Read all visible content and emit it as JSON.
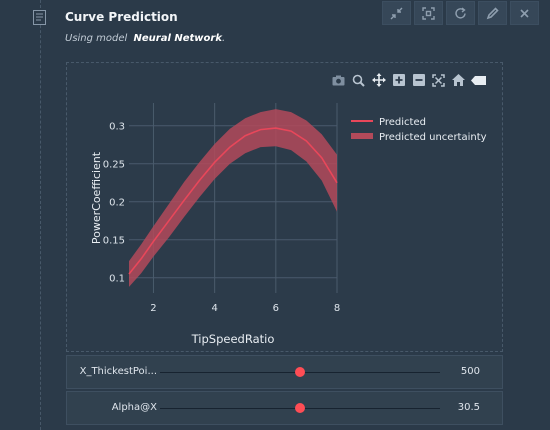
{
  "header": {
    "title": "Curve Prediction",
    "subtitle_prefix": "Using model",
    "model_name": "Neural Network",
    "subtitle_suffix": "."
  },
  "toolbar": {
    "icons": [
      "collapse-icon",
      "expand-icon",
      "refresh-icon",
      "edit-icon",
      "close-icon"
    ]
  },
  "modebar": {
    "icons": [
      "camera-icon",
      "zoom-icon",
      "pan-icon",
      "zoom-in-icon",
      "zoom-out-icon",
      "autoscale-icon",
      "reset-axes-icon",
      "toggle-spike-icon"
    ]
  },
  "colors": {
    "predicted": "#e8475a",
    "uncertainty": "#b34a5a",
    "slider_knob": "#ff4d55"
  },
  "chart_data": {
    "type": "line",
    "xlabel": "TipSpeedRatio",
    "ylabel": "PowerCoefficient",
    "xlim": [
      1.2,
      8.0
    ],
    "ylim": [
      0.08,
      0.33
    ],
    "xticks": [
      2,
      4,
      6,
      8
    ],
    "yticks": [
      0.1,
      0.15,
      0.2,
      0.25,
      0.3
    ],
    "grid": true,
    "legend_position": "top-right",
    "series": [
      {
        "name": "Predicted",
        "x": [
          1.2,
          1.6,
          2.0,
          2.5,
          3.0,
          3.5,
          4.0,
          4.5,
          5.0,
          5.5,
          6.0,
          6.5,
          7.0,
          7.5,
          8.0
        ],
        "y": [
          0.105,
          0.125,
          0.148,
          0.175,
          0.202,
          0.228,
          0.252,
          0.272,
          0.287,
          0.295,
          0.297,
          0.293,
          0.28,
          0.258,
          0.225
        ]
      },
      {
        "name": "Predicted uncertainty",
        "x": [
          1.2,
          1.6,
          2.0,
          2.5,
          3.0,
          3.5,
          4.0,
          4.5,
          5.0,
          5.5,
          6.0,
          6.5,
          7.0,
          7.5,
          8.0
        ],
        "lower": [
          0.088,
          0.106,
          0.128,
          0.153,
          0.18,
          0.206,
          0.23,
          0.25,
          0.264,
          0.272,
          0.273,
          0.268,
          0.253,
          0.228,
          0.187
        ],
        "upper": [
          0.122,
          0.144,
          0.168,
          0.197,
          0.226,
          0.252,
          0.276,
          0.296,
          0.31,
          0.318,
          0.322,
          0.318,
          0.307,
          0.289,
          0.262
        ]
      }
    ]
  },
  "sliders": [
    {
      "label": "X_ThickestPoi...",
      "value": "500",
      "fraction": 0.5
    },
    {
      "label": "Alpha@X",
      "value": "30.5",
      "fraction": 0.5
    }
  ]
}
